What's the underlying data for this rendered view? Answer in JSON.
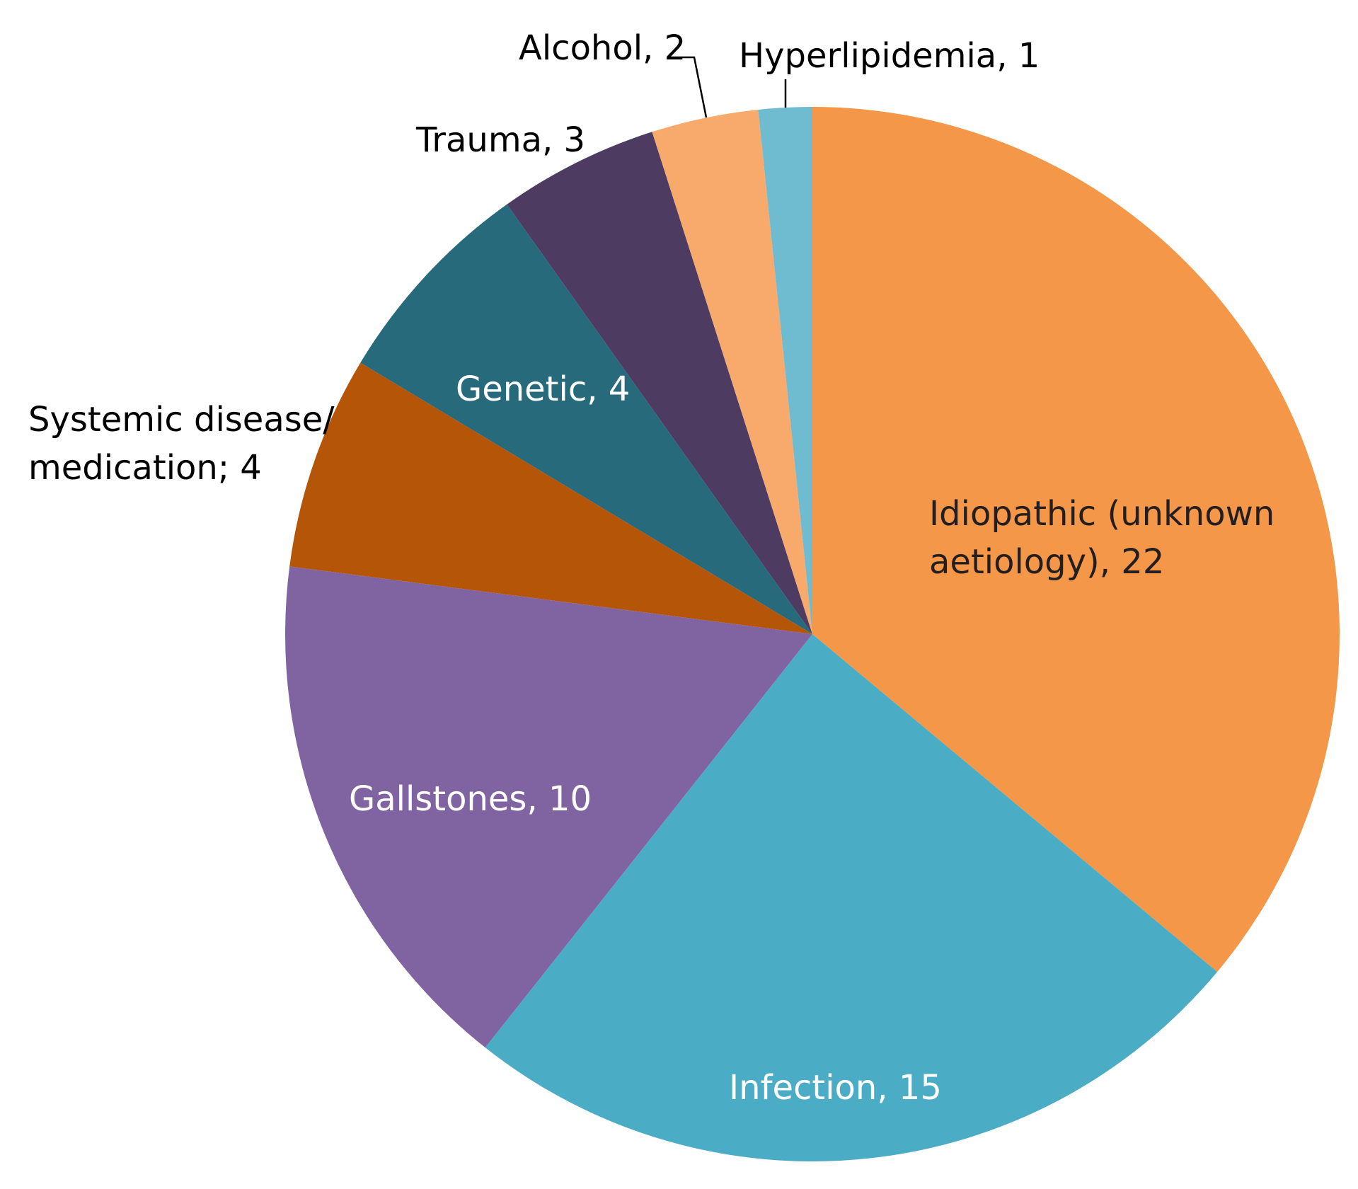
{
  "chart_data": {
    "type": "pie",
    "title": "",
    "slices": [
      {
        "label": "Idiopathic (unknown aetiology), 22",
        "label_lines": [
          "Idiopathic (unknown",
          "aetiology), 22"
        ],
        "value": 22,
        "color": "#F59748",
        "text_color": "#231F20"
      },
      {
        "label": "Infection, 15",
        "label_lines": [
          "Infection, 15"
        ],
        "value": 15,
        "color": "#4BACC6",
        "text_color": "#FFFFFF"
      },
      {
        "label": "Gallstones, 10",
        "label_lines": [
          "Gallstones, 10"
        ],
        "value": 10,
        "color": "#8064A2",
        "text_color": "#FFFFFF"
      },
      {
        "label": "Systemic disease/ medication; 4",
        "label_lines": [
          "Systemic disease/",
          "medication; 4"
        ],
        "value": 4,
        "color": "#B45507",
        "text_color": "#000000"
      },
      {
        "label": "Genetic, 4",
        "label_lines": [
          "Genetic, 4"
        ],
        "value": 4,
        "color": "#276A7C",
        "text_color": "#FFFFFF"
      },
      {
        "label": "Trauma, 3",
        "label_lines": [
          "Trauma, 3"
        ],
        "value": 3,
        "color": "#4E3B61",
        "text_color": "#000000"
      },
      {
        "label": "Alcohol, 2",
        "label_lines": [
          "Alcohol, 2"
        ],
        "value": 2,
        "color": "#F8AA6C",
        "text_color": "#000000"
      },
      {
        "label": "Hyperlipidemia, 1",
        "label_lines": [
          "Hyperlipidemia, 1"
        ],
        "value": 1,
        "color": "#6FBBCF",
        "text_color": "#000000"
      }
    ]
  }
}
